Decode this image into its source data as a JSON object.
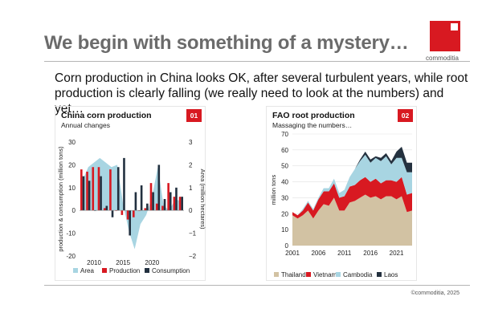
{
  "slide": {
    "title": "We begin with something of a mystery…",
    "subtitle": "Corn production in China looks OK, after several turbulent years, while root production is clearly falling (we really need to look at the numbers) and yet…",
    "logo_text": "commoditia",
    "footer": "©commoditia, 2025"
  },
  "colors": {
    "brand_red": "#d81921",
    "area_blue": "#a8d5e2",
    "navy": "#22303f",
    "thailand": "#d2c2a3",
    "vietnam": "#d81921",
    "cambodia": "#a8d5e2",
    "laos": "#24313f"
  },
  "chart_data": [
    {
      "id": "01",
      "type": "bar",
      "title": "China corn production",
      "subtitle": "Annual changes",
      "ylabel": "production & consumption (million tons)",
      "y2label": "Area (million hectares)",
      "ylim": [
        -20,
        30
      ],
      "y_ticks": [
        -20,
        -10,
        0,
        10,
        20,
        30
      ],
      "y2lim": [
        -2,
        3
      ],
      "y2_ticks": [
        -2,
        -1,
        0,
        1,
        2,
        3
      ],
      "x_ticks": [
        2010,
        2015,
        2020
      ],
      "categories": [
        2008,
        2009,
        2010,
        2011,
        2012,
        2013,
        2014,
        2015,
        2016,
        2017,
        2018,
        2019,
        2020,
        2021,
        2022,
        2023,
        2024,
        2025
      ],
      "series": [
        {
          "name": "Area",
          "kind": "area",
          "axis": "right",
          "values": [
            1.3,
            1.9,
            2.1,
            2.3,
            2.1,
            1.9,
            2.0,
            0.3,
            -0.9,
            -1.7,
            -0.6,
            -0.2,
            0.6,
            1.9,
            0.2,
            0.0,
            0.5,
            0.4
          ]
        },
        {
          "name": "Production",
          "kind": "bar",
          "axis": "left",
          "values": [
            18,
            17,
            19,
            19,
            1,
            18,
            0,
            -2,
            -4,
            -3,
            0,
            1,
            12,
            3,
            2,
            12,
            6,
            6
          ]
        },
        {
          "name": "Consumption",
          "kind": "bar",
          "axis": "left",
          "values": [
            15,
            13,
            0,
            15,
            2,
            -3,
            19,
            23,
            -11,
            8,
            11,
            3,
            8,
            20,
            5,
            8,
            10,
            6
          ]
        }
      ],
      "legend": [
        "Area",
        "Production",
        "Consumption"
      ],
      "legend_position": "bottom"
    },
    {
      "id": "02",
      "type": "area",
      "title": "FAO root production",
      "subtitle": "Massaging the numbers…",
      "ylabel": "million tons",
      "ylim": [
        0,
        70
      ],
      "y_ticks": [
        0,
        10,
        20,
        30,
        40,
        50,
        60,
        70
      ],
      "x_ticks": [
        2001,
        2006,
        2011,
        2016,
        2021
      ],
      "x": [
        2001,
        2002,
        2003,
        2004,
        2005,
        2006,
        2007,
        2008,
        2009,
        2010,
        2011,
        2012,
        2013,
        2014,
        2015,
        2016,
        2017,
        2018,
        2019,
        2020,
        2021,
        2022,
        2023,
        2024
      ],
      "stacked": true,
      "series": [
        {
          "name": "Thailand",
          "values": [
            19,
            17,
            19,
            22,
            17,
            22,
            26,
            25,
            30,
            22,
            22,
            27,
            28,
            30,
            32,
            30,
            31,
            29,
            31,
            31,
            29,
            31,
            21,
            22
          ]
        },
        {
          "name": "Vietnam",
          "values": [
            2,
            2,
            3,
            5,
            5,
            7,
            8,
            9,
            9,
            8,
            9,
            10,
            10,
            11,
            11,
            10,
            11,
            10,
            10,
            10,
            11,
            12,
            11,
            11
          ]
        },
        {
          "name": "Cambodia",
          "values": [
            0,
            0,
            1,
            1,
            1,
            1,
            2,
            2,
            3,
            3,
            4,
            6,
            10,
            12,
            14,
            12,
            13,
            14,
            15,
            10,
            15,
            12,
            14,
            13
          ]
        },
        {
          "name": "Laos",
          "values": [
            0,
            0,
            0,
            0,
            0,
            0,
            0,
            0,
            0,
            0,
            0,
            0,
            0,
            1,
            2,
            2,
            1,
            2,
            2,
            2,
            4,
            7,
            6,
            6
          ]
        }
      ],
      "legend": [
        "Thailand",
        "Vietnam",
        "Cambodia",
        "Laos"
      ],
      "legend_position": "bottom"
    }
  ]
}
